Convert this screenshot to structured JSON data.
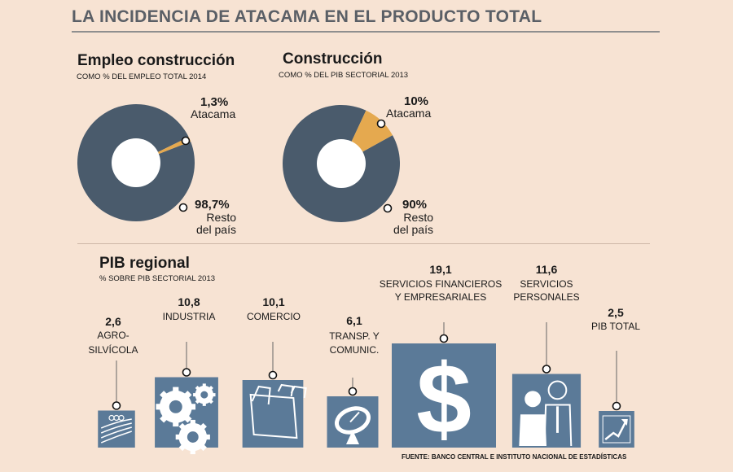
{
  "title": "LA INCIDENCIA DE ATACAMA EN EL PRODUCTO TOTAL",
  "colors": {
    "dark": "#4a5b6c",
    "highlight": "#e5a94f",
    "box": "#5b7a98",
    "bg": "#f7e3d3"
  },
  "chart_data": [
    {
      "type": "pie",
      "title": "Empleo construcción",
      "subtitle": "COMO % DEL EMPLEO TOTAL 2014",
      "slices": [
        {
          "name": "Atacama",
          "value": 1.3,
          "label": "1,3%"
        },
        {
          "name": "Resto del país",
          "value": 98.7,
          "label": "98,7%"
        }
      ],
      "labels": {
        "atacama_name": "Atacama",
        "rest_line1": "Resto",
        "rest_line2": "del país"
      }
    },
    {
      "type": "pie",
      "title": "Construcción",
      "subtitle": "COMO % DEL PIB SECTORIAL 2013",
      "slices": [
        {
          "name": "Atacama",
          "value": 10,
          "label": "10%"
        },
        {
          "name": "Resto del país",
          "value": 90,
          "label": "90%"
        }
      ],
      "labels": {
        "atacama_name": "Atacama",
        "rest_line1": "Resto",
        "rest_line2": "del país"
      }
    },
    {
      "type": "bar",
      "title": "PIB regional",
      "subtitle": "% SOBRE PIB SECTORIAL 2013",
      "categories": [
        "AGRO-SILVÍCOLA",
        "INDUSTRIA",
        "COMERCIO",
        "TRANSP. Y COMUNIC.",
        "SERVICIOS FINANCIEROS Y EMPRESARIALES",
        "SERVICIOS PERSONALES",
        "PIB TOTAL"
      ],
      "values": [
        2.6,
        10.8,
        10.1,
        6.1,
        19.1,
        11.6,
        2.5
      ],
      "value_labels": [
        "2,6",
        "10,8",
        "10,1",
        "6,1",
        "19,1",
        "11,6",
        "2,5"
      ],
      "name_lines": [
        [
          "AGRO-",
          "SILVÍCOLA"
        ],
        [
          "INDUSTRIA"
        ],
        [
          "COMERCIO"
        ],
        [
          "TRANSP. Y",
          "COMUNIC."
        ],
        [
          "SERVICIOS FINANCIEROS",
          "Y EMPRESARIALES"
        ],
        [
          "SERVICIOS",
          "PERSONALES"
        ],
        [
          "PIB TOTAL"
        ]
      ],
      "icons": [
        "field-icon",
        "gears-icon",
        "folders-icon",
        "satellite-dish-icon",
        "dollar-icon",
        "people-icon",
        "growth-chart-icon"
      ]
    }
  ],
  "source": "FUENTE: BANCO CENTRAL E INSTITUTO NACIONAL DE ESTADÍSTICAS"
}
